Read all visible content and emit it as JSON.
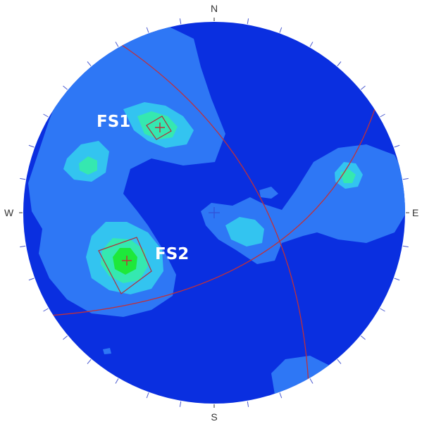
{
  "compass": {
    "north": "N",
    "south": "S",
    "east": "E",
    "west": "W"
  },
  "sets": [
    {
      "id": "FS1",
      "label": "FS1"
    },
    {
      "id": "FS2",
      "label": "FS2"
    }
  ],
  "colors": {
    "background_density": "#0a2fe0",
    "contour_1": "#2e77f5",
    "contour_2": "#33c4f0",
    "contour_3": "#35e8b0",
    "contour_4": "#1ee83a",
    "great_circle": "#c0303a",
    "tick": "#4a5ad0"
  }
}
